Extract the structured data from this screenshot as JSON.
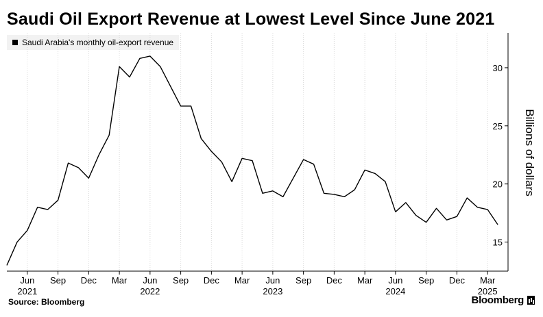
{
  "title": "Saudi Oil Export Revenue at Lowest Level Since June 2021",
  "legend": {
    "label": "Saudi Arabia's monthly oil-export revenue"
  },
  "source": "Source: Bloomberg",
  "brand": "Bloomberg",
  "colors": {
    "line": "#000000",
    "grid": "#d9d9d9",
    "legend_bg": "#f2f2f2"
  },
  "chart_data": {
    "type": "line",
    "title": "Saudi Oil Export Revenue at Lowest Level Since June 2021",
    "ylabel": "Billions of dollars",
    "xlabel": "",
    "ylim": [
      12.5,
      33
    ],
    "yticks": [
      15,
      20,
      25,
      30
    ],
    "grid": "vertical",
    "legend_position": "top-left",
    "x_range": [
      "2021-04",
      "2025-05"
    ],
    "xtick_months": [
      {
        "month": "2021-06",
        "label": "Jun",
        "year": "2021"
      },
      {
        "month": "2021-09",
        "label": "Sep",
        "year": ""
      },
      {
        "month": "2021-12",
        "label": "Dec",
        "year": ""
      },
      {
        "month": "2022-03",
        "label": "Mar",
        "year": ""
      },
      {
        "month": "2022-06",
        "label": "Jun",
        "year": "2022"
      },
      {
        "month": "2022-09",
        "label": "Sep",
        "year": ""
      },
      {
        "month": "2022-12",
        "label": "Dec",
        "year": ""
      },
      {
        "month": "2023-03",
        "label": "Mar",
        "year": ""
      },
      {
        "month": "2023-06",
        "label": "Jun",
        "year": "2023"
      },
      {
        "month": "2023-09",
        "label": "Sep",
        "year": ""
      },
      {
        "month": "2023-12",
        "label": "Dec",
        "year": ""
      },
      {
        "month": "2024-03",
        "label": "Mar",
        "year": ""
      },
      {
        "month": "2024-06",
        "label": "Jun",
        "year": "2024"
      },
      {
        "month": "2024-09",
        "label": "Sep",
        "year": ""
      },
      {
        "month": "2024-12",
        "label": "Dec",
        "year": ""
      },
      {
        "month": "2025-03",
        "label": "Mar",
        "year": "2025"
      }
    ],
    "series": [
      {
        "name": "Saudi Arabia's monthly oil-export revenue",
        "points": [
          {
            "x": "2021-04",
            "y": 13.0
          },
          {
            "x": "2021-05",
            "y": 15.0
          },
          {
            "x": "2021-06",
            "y": 16.0
          },
          {
            "x": "2021-07",
            "y": 18.0
          },
          {
            "x": "2021-08",
            "y": 17.8
          },
          {
            "x": "2021-09",
            "y": 18.6
          },
          {
            "x": "2021-10",
            "y": 21.8
          },
          {
            "x": "2021-11",
            "y": 21.4
          },
          {
            "x": "2021-12",
            "y": 20.5
          },
          {
            "x": "2022-01",
            "y": 22.5
          },
          {
            "x": "2022-02",
            "y": 24.2
          },
          {
            "x": "2022-03",
            "y": 30.1
          },
          {
            "x": "2022-04",
            "y": 29.2
          },
          {
            "x": "2022-05",
            "y": 30.8
          },
          {
            "x": "2022-06",
            "y": 31.0
          },
          {
            "x": "2022-07",
            "y": 30.1
          },
          {
            "x": "2022-08",
            "y": 28.4
          },
          {
            "x": "2022-09",
            "y": 26.7
          },
          {
            "x": "2022-10",
            "y": 26.7
          },
          {
            "x": "2022-11",
            "y": 23.9
          },
          {
            "x": "2022-12",
            "y": 22.8
          },
          {
            "x": "2023-01",
            "y": 21.9
          },
          {
            "x": "2023-02",
            "y": 20.2
          },
          {
            "x": "2023-03",
            "y": 22.2
          },
          {
            "x": "2023-04",
            "y": 22.0
          },
          {
            "x": "2023-05",
            "y": 19.2
          },
          {
            "x": "2023-06",
            "y": 19.4
          },
          {
            "x": "2023-07",
            "y": 18.9
          },
          {
            "x": "2023-08",
            "y": 20.5
          },
          {
            "x": "2023-09",
            "y": 22.1
          },
          {
            "x": "2023-10",
            "y": 21.7
          },
          {
            "x": "2023-11",
            "y": 19.2
          },
          {
            "x": "2023-12",
            "y": 19.1
          },
          {
            "x": "2024-01",
            "y": 18.9
          },
          {
            "x": "2024-02",
            "y": 19.5
          },
          {
            "x": "2024-03",
            "y": 21.2
          },
          {
            "x": "2024-04",
            "y": 20.9
          },
          {
            "x": "2024-05",
            "y": 20.2
          },
          {
            "x": "2024-06",
            "y": 17.6
          },
          {
            "x": "2024-07",
            "y": 18.4
          },
          {
            "x": "2024-08",
            "y": 17.3
          },
          {
            "x": "2024-09",
            "y": 16.7
          },
          {
            "x": "2024-10",
            "y": 17.9
          },
          {
            "x": "2024-11",
            "y": 16.9
          },
          {
            "x": "2024-12",
            "y": 17.2
          },
          {
            "x": "2025-01",
            "y": 18.8
          },
          {
            "x": "2025-02",
            "y": 18.0
          },
          {
            "x": "2025-03",
            "y": 17.8
          },
          {
            "x": "2025-04",
            "y": 16.5
          }
        ]
      }
    ]
  }
}
